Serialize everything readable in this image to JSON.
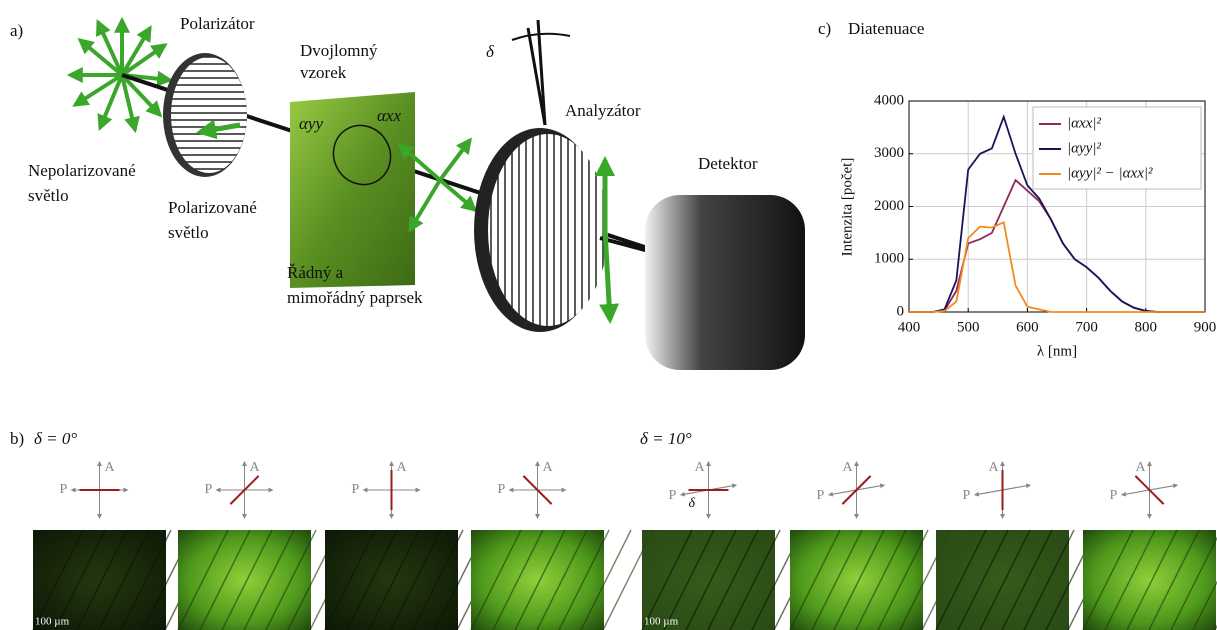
{
  "panel_labels": {
    "a": "a)",
    "b": "b)",
    "c": "c)"
  },
  "diagram": {
    "polarizer": "Polarizátor",
    "sample": [
      "Dvojlomný",
      "vzorek"
    ],
    "unpolarized": [
      "Nepolarizované",
      "světlo"
    ],
    "polarized": [
      "Polarizované",
      "světlo"
    ],
    "rays": [
      "Řádný a",
      "mimořádný paprsek"
    ],
    "analyzer": "Analyzátor",
    "detector": "Detektor",
    "delta": "δ",
    "alpha_yy": "αyy",
    "alpha_xx": "αxx"
  },
  "micrographs": {
    "groups": [
      {
        "label": "δ = 0°"
      },
      {
        "label": "δ = 10°"
      }
    ],
    "polarizer_axis": "P",
    "analyzer_axis": "A",
    "angle_symbol": "δ",
    "scale_bar": "100 µm"
  },
  "chart_data": {
    "type": "line",
    "title": "Diatenuace",
    "x_label": "λ [nm]",
    "y_label": "Intenzita [počet]",
    "x": [
      400,
      420,
      440,
      460,
      480,
      500,
      520,
      540,
      560,
      580,
      600,
      620,
      640,
      660,
      680,
      700,
      720,
      740,
      760,
      780,
      800,
      820,
      840,
      860,
      880,
      900
    ],
    "series": [
      {
        "name": "|αxx|²",
        "color": "#8e2a5a",
        "values": [
          0,
          0,
          0,
          30,
          400,
          1300,
          1380,
          1500,
          2000,
          2500,
          2300,
          2100,
          1750,
          1300,
          1000,
          850,
          650,
          400,
          200,
          80,
          20,
          0,
          0,
          0,
          0,
          0
        ]
      },
      {
        "name": "|αyy|²",
        "color": "#1c1259",
        "values": [
          0,
          0,
          0,
          50,
          600,
          2700,
          3000,
          3100,
          3700,
          3000,
          2400,
          2150,
          1750,
          1300,
          1000,
          850,
          650,
          400,
          200,
          80,
          20,
          0,
          0,
          0,
          0,
          0
        ]
      },
      {
        "name": "|αyy|² − |αxx|²",
        "color": "#f28a1c",
        "values": [
          0,
          0,
          0,
          20,
          200,
          1400,
          1620,
          1600,
          1700,
          500,
          100,
          50,
          0,
          0,
          0,
          0,
          0,
          0,
          0,
          0,
          0,
          0,
          0,
          0,
          0,
          0
        ]
      }
    ],
    "xlim": [
      400,
      900
    ],
    "ylim": [
      0,
      4000
    ],
    "xticks": [
      400,
      500,
      600,
      700,
      800,
      900
    ],
    "yticks": [
      0,
      1000,
      2000,
      3000,
      4000
    ],
    "grid": true,
    "legend": "upper right"
  }
}
